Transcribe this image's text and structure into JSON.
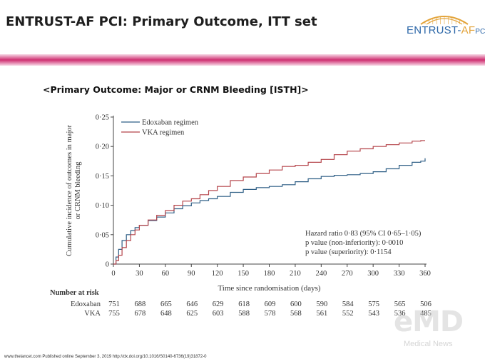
{
  "slide": {
    "title": "ENTRUST-AF PCI: Primary Outcome, ITT set",
    "subtitle": "<Primary Outcome: Major or CRNM Bleeding [ISTH]>",
    "footer": "www.thelancet.com Published online September 3, 2019 http://dx.doi.org/10.1016/S0140-6736(19)31872-0"
  },
  "logo": {
    "text_main": "ENTRUST-",
    "text_af": "AF",
    "text_pci": "PCI",
    "arc_color": "#e3a43b",
    "text_color": "#2c67a8"
  },
  "band_colors": [
    "#f7d8e6",
    "#cf2f71",
    "#f7d8e6"
  ],
  "watermark": {
    "main": "eMD",
    "sub": "Medical News"
  },
  "chart_data": {
    "type": "line",
    "title": "",
    "xlabel": "Time since randomisation (days)",
    "ylabel": "Cumulative incidence of outcomes in major or CRNM bleeding",
    "xlim": [
      0,
      360
    ],
    "ylim": [
      0,
      0.25
    ],
    "x_ticks": [
      0,
      30,
      60,
      90,
      120,
      150,
      180,
      210,
      240,
      270,
      300,
      330,
      360
    ],
    "x_tick_labels": [
      "0",
      "30",
      "60",
      "90",
      "120",
      "150",
      "180",
      "210",
      "240",
      "270",
      "300",
      "330",
      "360"
    ],
    "y_ticks": [
      0,
      0.05,
      0.1,
      0.15,
      0.2,
      0.25
    ],
    "y_tick_labels": [
      "0",
      "0·05",
      "0·10",
      "0·15",
      "0·20",
      "0·25"
    ],
    "grid": false,
    "legend_position": "top-left",
    "series": [
      {
        "name": "Edoxaban regimen",
        "color": "#2f5f86",
        "x": [
          0,
          3,
          6,
          10,
          15,
          20,
          25,
          30,
          40,
          50,
          60,
          70,
          80,
          90,
          100,
          110,
          120,
          135,
          150,
          165,
          180,
          195,
          210,
          225,
          240,
          255,
          270,
          285,
          300,
          315,
          330,
          345,
          355,
          360
        ],
        "y": [
          0,
          0.012,
          0.025,
          0.04,
          0.05,
          0.057,
          0.062,
          0.066,
          0.074,
          0.08,
          0.087,
          0.094,
          0.099,
          0.104,
          0.108,
          0.111,
          0.115,
          0.122,
          0.127,
          0.13,
          0.132,
          0.135,
          0.14,
          0.145,
          0.149,
          0.151,
          0.152,
          0.154,
          0.157,
          0.162,
          0.168,
          0.173,
          0.175,
          0.18
        ]
      },
      {
        "name": "VKA regimen",
        "color": "#b5454b",
        "x": [
          0,
          3,
          6,
          10,
          15,
          20,
          25,
          30,
          40,
          50,
          60,
          70,
          80,
          90,
          100,
          110,
          120,
          135,
          150,
          165,
          180,
          195,
          210,
          225,
          240,
          255,
          270,
          285,
          300,
          315,
          330,
          345,
          355,
          360
        ],
        "y": [
          0,
          0.006,
          0.015,
          0.028,
          0.04,
          0.05,
          0.058,
          0.066,
          0.075,
          0.083,
          0.091,
          0.1,
          0.107,
          0.111,
          0.118,
          0.125,
          0.132,
          0.142,
          0.148,
          0.154,
          0.16,
          0.166,
          0.168,
          0.173,
          0.178,
          0.186,
          0.192,
          0.196,
          0.2,
          0.203,
          0.206,
          0.209,
          0.21,
          0.21
        ]
      }
    ],
    "annotations": [
      "Hazard ratio 0·83 (95% CI 0·65–1·05)",
      "p value (non-inferiority): 0·0010",
      "p value (superiority): 0·1154"
    ],
    "risk_table": {
      "title": "Number at risk",
      "rows": [
        {
          "label": "Edoxaban",
          "values": [
            "751",
            "688",
            "665",
            "646",
            "629",
            "618",
            "609",
            "600",
            "590",
            "584",
            "575",
            "565",
            "506"
          ]
        },
        {
          "label": "VKA",
          "values": [
            "755",
            "678",
            "648",
            "625",
            "603",
            "588",
            "578",
            "568",
            "561",
            "552",
            "543",
            "536",
            "485"
          ]
        }
      ]
    }
  }
}
